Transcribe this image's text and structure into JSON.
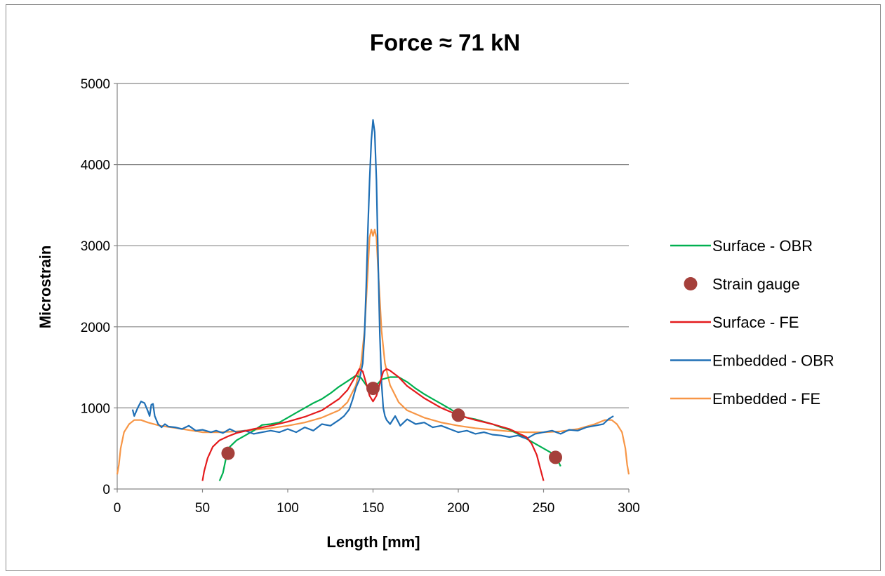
{
  "chart_data": {
    "type": "line",
    "title": "Force ≈ 71 kN",
    "xlabel": "Length [mm]",
    "ylabel": "Microstrain",
    "xlim": [
      0,
      300
    ],
    "ylim": [
      0,
      5000
    ],
    "x_ticks": [
      "0",
      "50",
      "100",
      "150",
      "200",
      "250",
      "300"
    ],
    "y_ticks": [
      "0",
      "1000",
      "2000",
      "3000",
      "4000",
      "5000"
    ],
    "grid": "horizontal",
    "legend": "right",
    "series": [
      {
        "name": "Surface - OBR",
        "color": "#00b050",
        "marker": "line",
        "points": [
          [
            60,
            100
          ],
          [
            62,
            200
          ],
          [
            64,
            400
          ],
          [
            66,
            520
          ],
          [
            70,
            600
          ],
          [
            75,
            660
          ],
          [
            80,
            720
          ],
          [
            85,
            790
          ],
          [
            90,
            800
          ],
          [
            95,
            820
          ],
          [
            100,
            880
          ],
          [
            105,
            940
          ],
          [
            110,
            1000
          ],
          [
            115,
            1060
          ],
          [
            120,
            1110
          ],
          [
            125,
            1180
          ],
          [
            130,
            1260
          ],
          [
            135,
            1330
          ],
          [
            140,
            1400
          ],
          [
            143,
            1370
          ],
          [
            146,
            1280
          ],
          [
            148,
            1240
          ],
          [
            150,
            1250
          ],
          [
            152,
            1280
          ],
          [
            155,
            1350
          ],
          [
            160,
            1380
          ],
          [
            165,
            1380
          ],
          [
            170,
            1320
          ],
          [
            175,
            1240
          ],
          [
            180,
            1170
          ],
          [
            185,
            1110
          ],
          [
            190,
            1050
          ],
          [
            195,
            990
          ],
          [
            200,
            920
          ],
          [
            205,
            880
          ],
          [
            210,
            860
          ],
          [
            215,
            830
          ],
          [
            220,
            800
          ],
          [
            225,
            760
          ],
          [
            230,
            730
          ],
          [
            235,
            680
          ],
          [
            240,
            620
          ],
          [
            245,
            560
          ],
          [
            250,
            500
          ],
          [
            255,
            440
          ],
          [
            258,
            370
          ],
          [
            260,
            280
          ]
        ]
      },
      {
        "name": "Strain gauge",
        "color": "#a5403b",
        "marker": "circle",
        "points": [
          [
            65,
            440
          ],
          [
            150,
            1240
          ],
          [
            200,
            910
          ],
          [
            257,
            390
          ]
        ]
      },
      {
        "name": "Surface - FE",
        "color": "#e41a1c",
        "marker": "line",
        "points": [
          [
            50,
            100
          ],
          [
            51,
            220
          ],
          [
            53,
            380
          ],
          [
            56,
            520
          ],
          [
            60,
            600
          ],
          [
            65,
            650
          ],
          [
            70,
            690
          ],
          [
            80,
            740
          ],
          [
            90,
            780
          ],
          [
            100,
            830
          ],
          [
            110,
            890
          ],
          [
            120,
            970
          ],
          [
            130,
            1110
          ],
          [
            135,
            1220
          ],
          [
            140,
            1400
          ],
          [
            142,
            1480
          ],
          [
            144,
            1450
          ],
          [
            146,
            1300
          ],
          [
            148,
            1150
          ],
          [
            150,
            1080
          ],
          [
            152,
            1150
          ],
          [
            154,
            1300
          ],
          [
            156,
            1450
          ],
          [
            158,
            1480
          ],
          [
            160,
            1460
          ],
          [
            165,
            1380
          ],
          [
            170,
            1270
          ],
          [
            180,
            1120
          ],
          [
            190,
            1000
          ],
          [
            200,
            910
          ],
          [
            210,
            850
          ],
          [
            220,
            800
          ],
          [
            230,
            740
          ],
          [
            240,
            640
          ],
          [
            243,
            560
          ],
          [
            246,
            420
          ],
          [
            248,
            260
          ],
          [
            250,
            100
          ]
        ]
      },
      {
        "name": "Embedded - OBR",
        "color": "#1f6fb5",
        "marker": "line",
        "points": [
          [
            9,
            980
          ],
          [
            10,
            900
          ],
          [
            12,
            1000
          ],
          [
            14,
            1080
          ],
          [
            16,
            1060
          ],
          [
            18,
            960
          ],
          [
            19,
            900
          ],
          [
            20,
            1040
          ],
          [
            21,
            1050
          ],
          [
            22,
            900
          ],
          [
            24,
            800
          ],
          [
            26,
            760
          ],
          [
            28,
            800
          ],
          [
            30,
            770
          ],
          [
            34,
            760
          ],
          [
            38,
            740
          ],
          [
            42,
            780
          ],
          [
            46,
            720
          ],
          [
            50,
            730
          ],
          [
            55,
            700
          ],
          [
            58,
            720
          ],
          [
            62,
            690
          ],
          [
            66,
            740
          ],
          [
            70,
            700
          ],
          [
            75,
            720
          ],
          [
            80,
            680
          ],
          [
            85,
            700
          ],
          [
            90,
            720
          ],
          [
            95,
            700
          ],
          [
            100,
            740
          ],
          [
            105,
            700
          ],
          [
            110,
            760
          ],
          [
            115,
            720
          ],
          [
            120,
            800
          ],
          [
            125,
            780
          ],
          [
            130,
            850
          ],
          [
            133,
            900
          ],
          [
            136,
            980
          ],
          [
            138,
            1100
          ],
          [
            140,
            1250
          ],
          [
            142,
            1350
          ],
          [
            144,
            1550
          ],
          [
            145,
            1900
          ],
          [
            146,
            2500
          ],
          [
            147,
            3200
          ],
          [
            148,
            3800
          ],
          [
            149,
            4300
          ],
          [
            150,
            4550
          ],
          [
            151,
            4400
          ],
          [
            152,
            3800
          ],
          [
            153,
            2800
          ],
          [
            154,
            1900
          ],
          [
            155,
            1300
          ],
          [
            156,
            1000
          ],
          [
            157,
            900
          ],
          [
            158,
            850
          ],
          [
            160,
            800
          ],
          [
            163,
            900
          ],
          [
            166,
            780
          ],
          [
            170,
            860
          ],
          [
            175,
            800
          ],
          [
            180,
            820
          ],
          [
            185,
            760
          ],
          [
            190,
            780
          ],
          [
            195,
            740
          ],
          [
            200,
            700
          ],
          [
            205,
            720
          ],
          [
            210,
            680
          ],
          [
            215,
            700
          ],
          [
            220,
            670
          ],
          [
            225,
            660
          ],
          [
            230,
            640
          ],
          [
            235,
            660
          ],
          [
            240,
            620
          ],
          [
            245,
            680
          ],
          [
            250,
            700
          ],
          [
            255,
            720
          ],
          [
            260,
            680
          ],
          [
            265,
            730
          ],
          [
            270,
            720
          ],
          [
            275,
            760
          ],
          [
            280,
            780
          ],
          [
            285,
            800
          ],
          [
            288,
            860
          ],
          [
            291,
            900
          ]
        ]
      },
      {
        "name": "Embedded - FE",
        "color": "#f79646",
        "marker": "line",
        "points": [
          [
            0,
            180
          ],
          [
            1,
            300
          ],
          [
            2,
            500
          ],
          [
            4,
            700
          ],
          [
            7,
            800
          ],
          [
            10,
            850
          ],
          [
            14,
            850
          ],
          [
            18,
            820
          ],
          [
            25,
            780
          ],
          [
            35,
            750
          ],
          [
            50,
            700
          ],
          [
            60,
            700
          ],
          [
            70,
            710
          ],
          [
            80,
            730
          ],
          [
            90,
            750
          ],
          [
            100,
            780
          ],
          [
            110,
            820
          ],
          [
            120,
            880
          ],
          [
            130,
            970
          ],
          [
            135,
            1070
          ],
          [
            140,
            1280
          ],
          [
            143,
            1550
          ],
          [
            145,
            1950
          ],
          [
            147,
            2700
          ],
          [
            148,
            3100
          ],
          [
            149,
            3200
          ],
          [
            150,
            3120
          ],
          [
            151,
            3200
          ],
          [
            152,
            3100
          ],
          [
            153,
            2700
          ],
          [
            155,
            1950
          ],
          [
            157,
            1550
          ],
          [
            160,
            1280
          ],
          [
            165,
            1070
          ],
          [
            170,
            970
          ],
          [
            180,
            880
          ],
          [
            190,
            820
          ],
          [
            200,
            780
          ],
          [
            210,
            750
          ],
          [
            220,
            730
          ],
          [
            230,
            710
          ],
          [
            240,
            700
          ],
          [
            250,
            700
          ],
          [
            260,
            710
          ],
          [
            270,
            740
          ],
          [
            280,
            800
          ],
          [
            286,
            850
          ],
          [
            290,
            850
          ],
          [
            293,
            800
          ],
          [
            296,
            700
          ],
          [
            298,
            500
          ],
          [
            299,
            300
          ],
          [
            300,
            180
          ]
        ]
      }
    ]
  }
}
